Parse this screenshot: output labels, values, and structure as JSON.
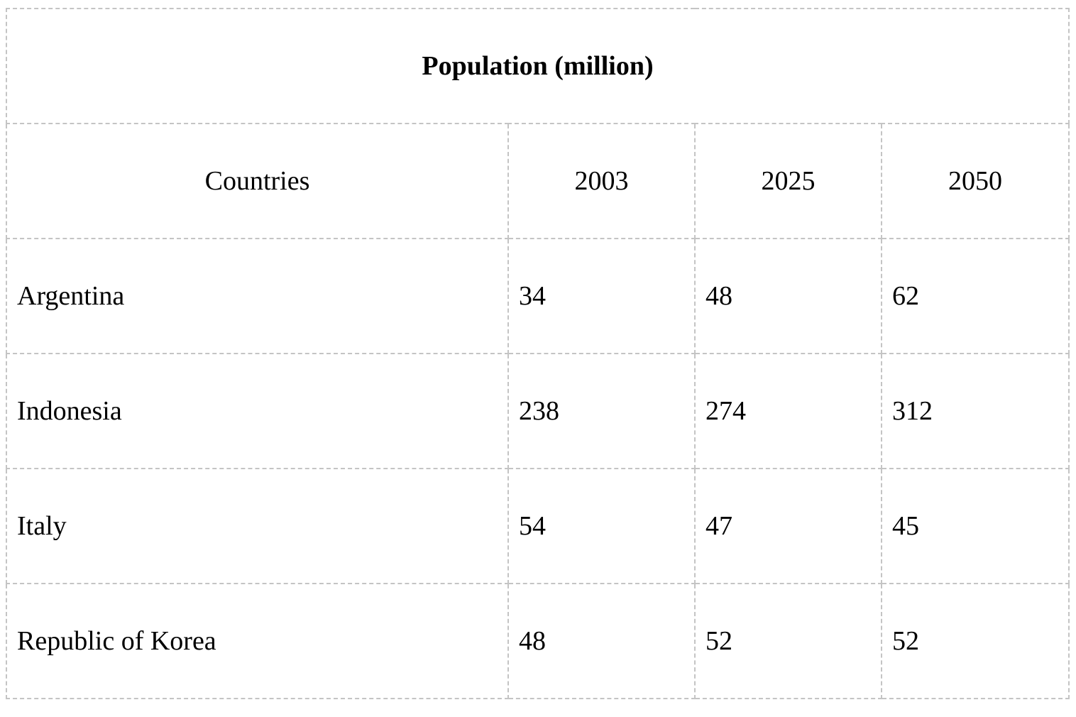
{
  "chart_data": {
    "type": "table",
    "title": "Population (million)",
    "columns": [
      "Countries",
      "2003",
      "2025",
      "2050"
    ],
    "rows": [
      [
        "Argentina",
        "34",
        "48",
        "62"
      ],
      [
        "Indonesia",
        "238",
        "274",
        "312"
      ],
      [
        "Italy",
        "54",
        "47",
        "45"
      ],
      [
        "Republic of Korea",
        "48",
        "52",
        "52"
      ]
    ]
  },
  "colors": {
    "border": "#c4c4c4",
    "text": "#000000",
    "background": "#ffffff"
  }
}
